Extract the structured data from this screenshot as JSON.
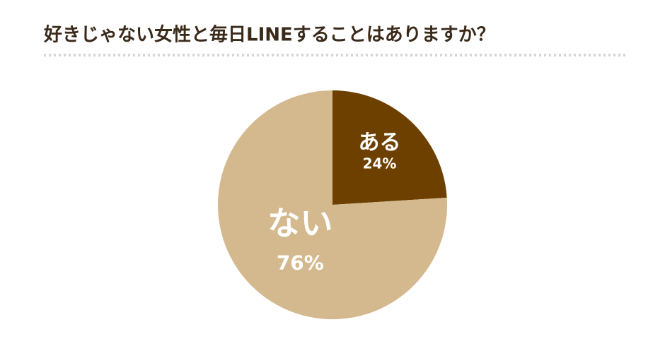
{
  "chart_data": {
    "type": "pie",
    "title": "好きじゃない女性と毎日LINEすることはありますか？",
    "categories": [
      "ある",
      "ない"
    ],
    "values": [
      24,
      76
    ],
    "value_labels": [
      "24%",
      "76%"
    ],
    "colors": [
      "#6e4000",
      "#d4b88e"
    ]
  }
}
